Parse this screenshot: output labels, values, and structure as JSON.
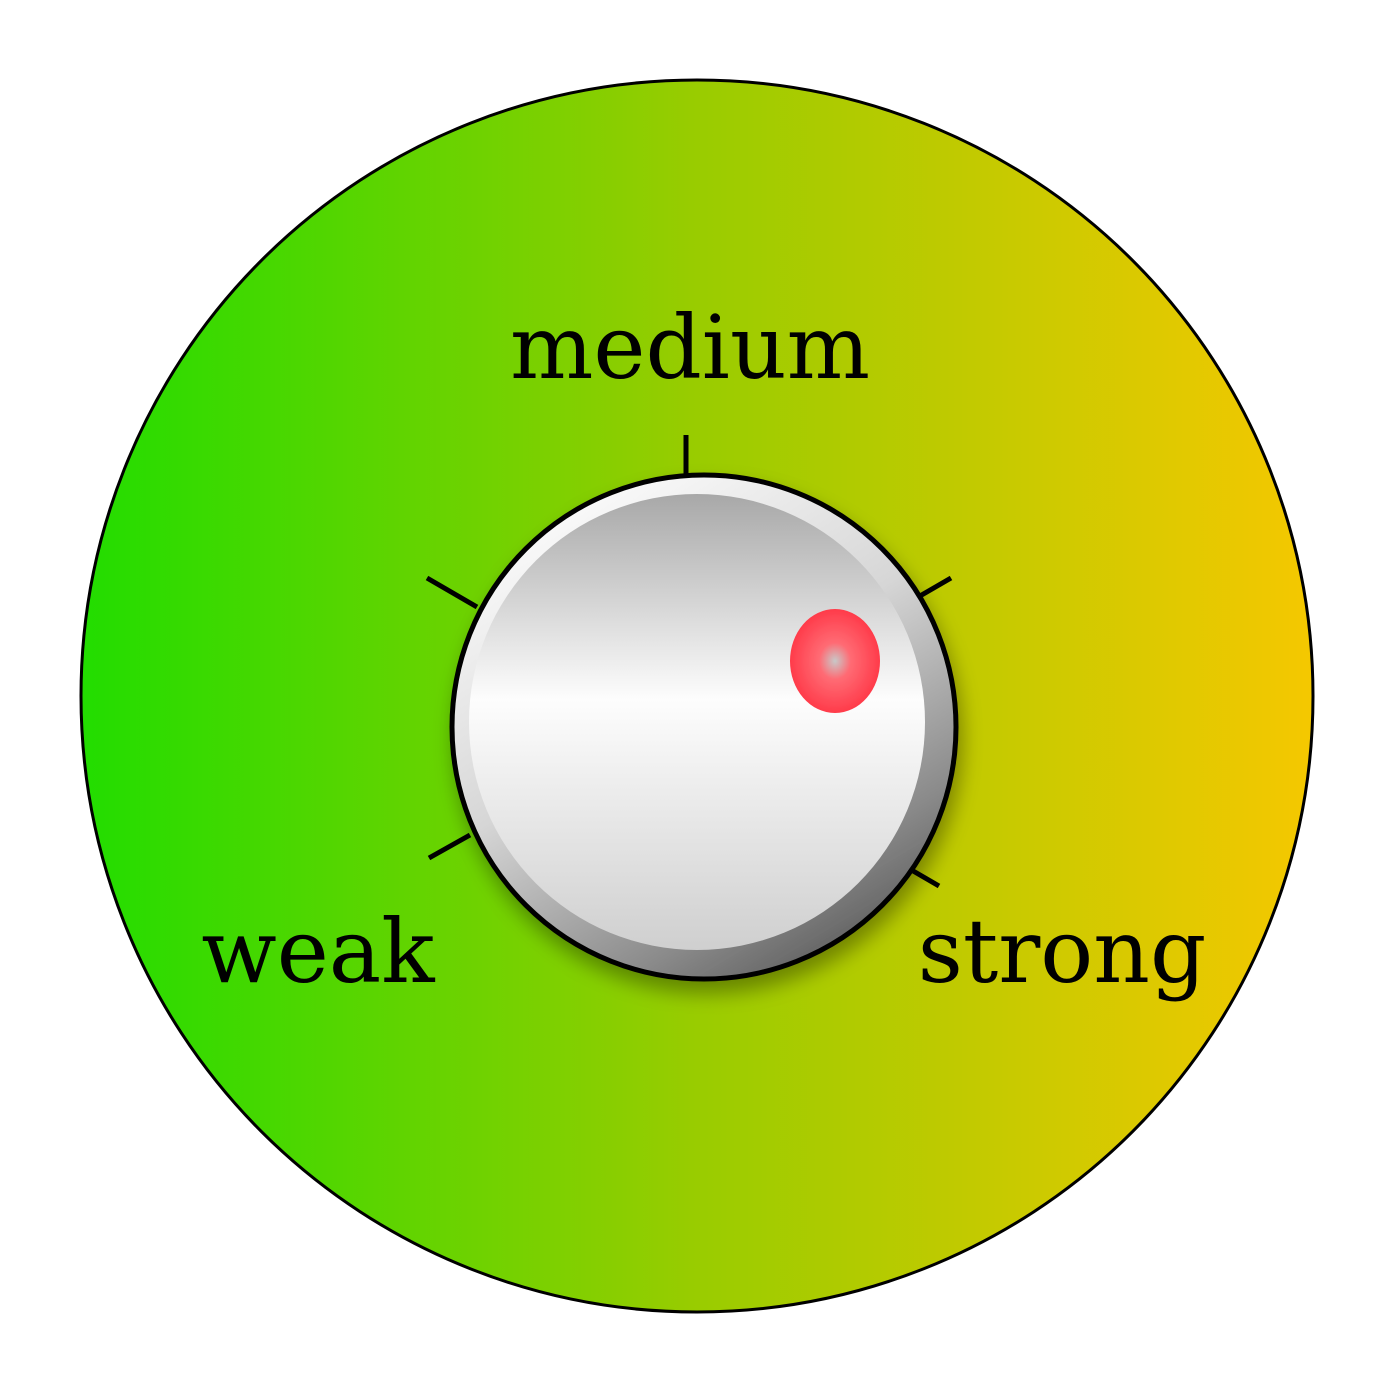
{
  "dial": {
    "labels": {
      "weak": "weak",
      "medium": "medium",
      "strong": "strong"
    },
    "knob_setting": "strong",
    "colors": {
      "gradient_left": "#22dd00",
      "gradient_mid": "#99cc00",
      "gradient_right": "#f5c800",
      "indicator": "#ff3b4a",
      "outline": "#000000"
    }
  }
}
